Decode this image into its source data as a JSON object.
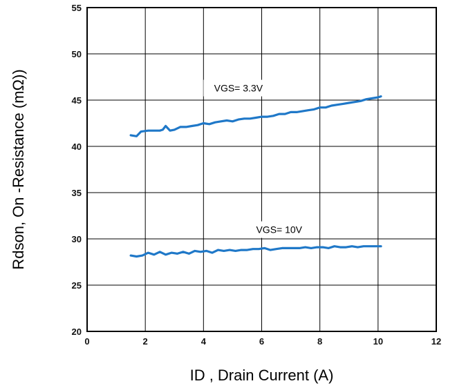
{
  "chart_data": {
    "type": "line",
    "title": "",
    "xlabel": "ID , Drain Current (A)",
    "ylabel": "Rdson, On -Resistance (mΩ))",
    "xlim": [
      0,
      12
    ],
    "ylim": [
      20,
      55
    ],
    "xticks": [
      0,
      2,
      4,
      6,
      8,
      10,
      12
    ],
    "yticks": [
      20,
      25,
      30,
      35,
      40,
      45,
      50,
      55
    ],
    "grid": true,
    "legend": "none",
    "line_color": "#1f78c8",
    "series": [
      {
        "x": [
          1.5,
          1.7,
          1.85,
          2.1,
          2.3,
          2.5,
          2.6,
          2.7,
          2.85,
          3.0,
          3.2,
          3.4,
          3.6,
          3.8,
          4.0,
          4.2,
          4.4,
          4.6,
          4.8,
          5.0,
          5.2,
          5.4,
          5.6,
          5.8,
          6.0,
          6.2,
          6.4,
          6.6,
          6.8,
          7.0,
          7.2,
          7.4,
          7.6,
          7.8,
          8.0,
          8.2,
          8.4,
          8.6,
          8.8,
          9.0,
          9.2,
          9.4,
          9.6,
          9.8,
          10.0,
          10.1
        ],
        "values": [
          41.2,
          41.1,
          41.6,
          41.7,
          41.7,
          41.7,
          41.8,
          42.2,
          41.7,
          41.8,
          42.1,
          42.1,
          42.2,
          42.3,
          42.5,
          42.4,
          42.6,
          42.7,
          42.8,
          42.7,
          42.9,
          43.0,
          43.0,
          43.1,
          43.2,
          43.2,
          43.3,
          43.5,
          43.5,
          43.7,
          43.7,
          43.8,
          43.9,
          44.0,
          44.2,
          44.2,
          44.4,
          44.5,
          44.6,
          44.7,
          44.8,
          44.9,
          45.1,
          45.2,
          45.3,
          45.4
        ]
      },
      {
        "x": [
          1.5,
          1.7,
          1.9,
          2.1,
          2.3,
          2.5,
          2.7,
          2.9,
          3.1,
          3.3,
          3.5,
          3.7,
          3.9,
          4.1,
          4.3,
          4.5,
          4.7,
          4.9,
          5.1,
          5.3,
          5.5,
          5.7,
          5.9,
          6.1,
          6.3,
          6.5,
          6.7,
          6.9,
          7.1,
          7.3,
          7.5,
          7.7,
          7.9,
          8.1,
          8.3,
          8.5,
          8.7,
          8.9,
          9.1,
          9.3,
          9.5,
          9.7,
          9.9,
          10.1
        ],
        "values": [
          28.2,
          28.1,
          28.2,
          28.5,
          28.3,
          28.6,
          28.3,
          28.5,
          28.4,
          28.6,
          28.4,
          28.7,
          28.6,
          28.7,
          28.5,
          28.8,
          28.7,
          28.8,
          28.7,
          28.8,
          28.8,
          28.9,
          28.9,
          29.0,
          28.8,
          28.9,
          29.0,
          29.0,
          29.0,
          29.0,
          29.1,
          29.0,
          29.1,
          29.1,
          29.0,
          29.2,
          29.1,
          29.1,
          29.2,
          29.1,
          29.2,
          29.2,
          29.2,
          29.2
        ]
      }
    ],
    "annotations": [
      {
        "text": "VGS= 3.3V",
        "x": 5.2,
        "y": 46.3
      },
      {
        "text": "VGS= 10V",
        "x": 6.6,
        "y": 31.0
      }
    ]
  }
}
